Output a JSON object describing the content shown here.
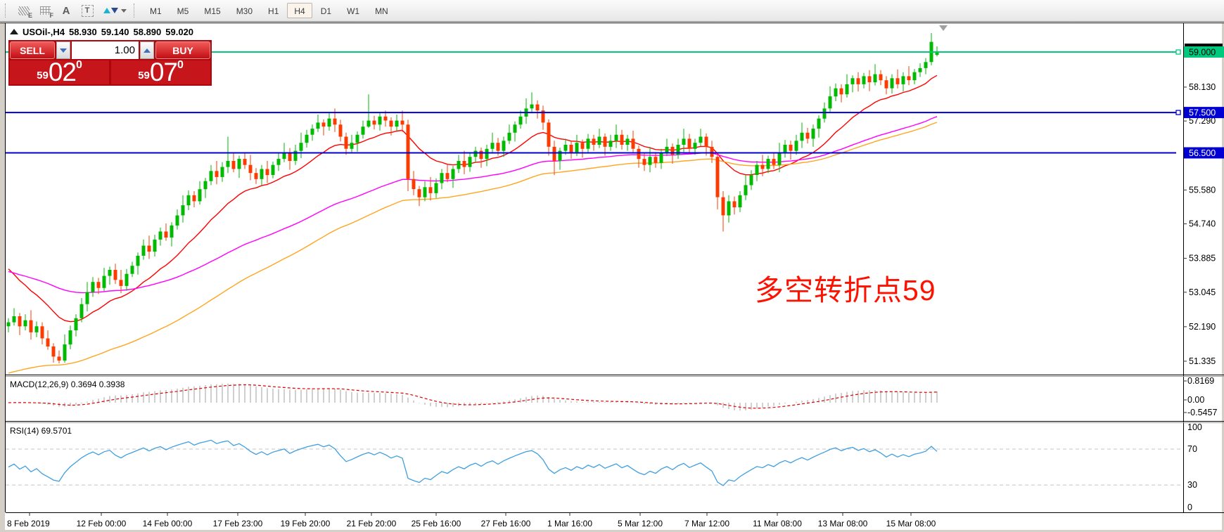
{
  "toolbar": {
    "icons": [
      {
        "name": "indicators-icon",
        "glyph": "E"
      },
      {
        "name": "grid-icon",
        "glyph": "F"
      },
      {
        "name": "text-label-icon",
        "glyph": "A"
      },
      {
        "name": "text-box-icon",
        "glyph": "T"
      },
      {
        "name": "arrow-objects-icon",
        "glyph": ""
      }
    ],
    "timeframes": [
      "M1",
      "M5",
      "M15",
      "M30",
      "H1",
      "H4",
      "D1",
      "W1",
      "MN"
    ],
    "selected_timeframe": "H4"
  },
  "quote": {
    "symbol_period": "USOil-,H4",
    "open": "58.930",
    "high": "59.140",
    "low": "58.890",
    "close": "59.020"
  },
  "trade_panel": {
    "sell_label": "SELL",
    "buy_label": "BUY",
    "volume": "1.00",
    "sell_price_small": "59",
    "sell_price_big": "02",
    "sell_price_sup": "0",
    "buy_price_small": "59",
    "buy_price_big": "07",
    "buy_price_sup": "0"
  },
  "annotation": {
    "text": "多空转折点59",
    "color": "#fd1100"
  },
  "price_axis": {
    "ticks": [
      {
        "label": "58.130",
        "value": 58.13
      },
      {
        "label": "57.290",
        "value": 57.29
      },
      {
        "label": "55.580",
        "value": 55.58
      },
      {
        "label": "54.740",
        "value": 54.74
      },
      {
        "label": "53.885",
        "value": 53.885
      },
      {
        "label": "53.045",
        "value": 53.045
      },
      {
        "label": "52.190",
        "value": 52.19
      },
      {
        "label": "51.335",
        "value": 51.335
      }
    ]
  },
  "hlines": [
    {
      "label": "59.000",
      "value": 59.0,
      "color": "#00c97e",
      "label_bg": "#00c97e",
      "label_fg": "#000000",
      "marker": true
    },
    {
      "label": "57.500",
      "value": 57.5,
      "color": "#0000d2",
      "label_bg": "#0000d2",
      "label_fg": "#ffffff",
      "marker": true
    },
    {
      "label": "56.500",
      "value": 56.5,
      "color": "#0000d2",
      "label_bg": "#0000d2",
      "label_fg": "#ffffff",
      "marker": false
    }
  ],
  "macd": {
    "label": "MACD(12,26,9) 0.3694 0.3938",
    "fast": 12,
    "slow": 26,
    "signal": 9,
    "main_value": "0.3694",
    "signal_value": "0.3938",
    "histogram_color": "#bbbbbb",
    "signal_color": "#e00000",
    "scale_labels": [
      {
        "text": "0.8169",
        "v": 0.8169
      },
      {
        "text": "0.00",
        "v": 0
      },
      {
        "text": "-0.5457",
        "v": -0.5457
      }
    ]
  },
  "rsi": {
    "label": "RSI(14) 69.5701",
    "period": 14,
    "current": "69.5701",
    "color": "#3f9fe0",
    "scale_labels": [
      {
        "text": "100",
        "v": 100
      },
      {
        "text": "70",
        "v": 70
      },
      {
        "text": "30",
        "v": 30
      },
      {
        "text": "0",
        "v": 0
      }
    ],
    "levels": [
      70,
      30
    ]
  },
  "time_axis": {
    "labels": [
      "8 Feb 2019",
      "12 Feb 00:00",
      "14 Feb 00:00",
      "17 Feb 23:00",
      "19 Feb 20:00",
      "21 Feb 20:00",
      "25 Feb 16:00",
      "27 Feb 16:00",
      "1 Mar 16:00",
      "5 Mar 12:00",
      "7 Mar 12:00",
      "11 Mar 08:00",
      "13 Mar 08:00",
      "15 Mar 08:00"
    ]
  },
  "chart_data": {
    "type": "candlestick",
    "symbol": "USOil-",
    "period": "H4",
    "up_color": "#00ba00",
    "down_color": "#fa3c00",
    "ma_lines": [
      {
        "name": "ma-fast",
        "color": "#ff0000",
        "period": 16,
        "seed": 53.8
      },
      {
        "name": "ma-medium",
        "color": "#ff00ff",
        "period": 61,
        "seed": 53.6
      },
      {
        "name": "ma-slow",
        "color": "#ffa520",
        "period": 70,
        "seed": 51.0
      }
    ],
    "candles": [
      [
        52.2,
        52.4,
        52.05,
        52.3
      ],
      [
        52.3,
        52.65,
        52.22,
        52.45
      ],
      [
        52.45,
        52.53,
        51.98,
        52.2
      ],
      [
        52.2,
        52.5,
        52.1,
        52.35
      ],
      [
        52.35,
        52.6,
        51.87,
        52.05
      ],
      [
        52.05,
        52.32,
        51.93,
        52.2
      ],
      [
        52.2,
        52.3,
        51.75,
        51.9
      ],
      [
        51.9,
        52.1,
        51.62,
        51.7
      ],
      [
        51.7,
        51.78,
        51.3,
        51.45
      ],
      [
        51.45,
        51.6,
        51.28,
        51.35
      ],
      [
        51.35,
        52.0,
        51.3,
        51.75
      ],
      [
        51.75,
        52.22,
        51.63,
        52.1
      ],
      [
        52.1,
        52.5,
        51.95,
        52.4
      ],
      [
        52.4,
        52.9,
        52.3,
        52.75
      ],
      [
        52.75,
        53.3,
        52.57,
        53.05
      ],
      [
        53.05,
        53.42,
        52.93,
        53.3
      ],
      [
        53.3,
        53.4,
        53.0,
        53.15
      ],
      [
        53.15,
        53.65,
        53.07,
        53.45
      ],
      [
        53.45,
        53.68,
        53.23,
        53.6
      ],
      [
        53.6,
        53.75,
        53.25,
        53.35
      ],
      [
        53.35,
        53.6,
        53.02,
        53.2
      ],
      [
        53.2,
        53.62,
        53.08,
        53.5
      ],
      [
        53.5,
        53.8,
        53.42,
        53.7
      ],
      [
        53.7,
        54.03,
        53.48,
        53.95
      ],
      [
        53.95,
        54.35,
        53.85,
        54.2
      ],
      [
        54.2,
        54.45,
        53.87,
        54.05
      ],
      [
        54.05,
        54.47,
        53.93,
        54.35
      ],
      [
        54.35,
        54.65,
        54.2,
        54.55
      ],
      [
        54.55,
        54.75,
        54.32,
        54.4
      ],
      [
        54.4,
        54.78,
        54.18,
        54.7
      ],
      [
        54.7,
        55.1,
        54.6,
        54.95
      ],
      [
        54.95,
        55.45,
        54.77,
        55.2
      ],
      [
        55.2,
        55.57,
        55.08,
        55.45
      ],
      [
        55.45,
        55.55,
        55.15,
        55.3
      ],
      [
        55.3,
        55.8,
        55.22,
        55.6
      ],
      [
        55.6,
        55.88,
        55.38,
        55.8
      ],
      [
        55.8,
        56.2,
        55.7,
        56.05
      ],
      [
        56.05,
        56.3,
        55.72,
        55.9
      ],
      [
        55.9,
        56.27,
        55.78,
        56.15
      ],
      [
        56.15,
        56.9,
        56.0,
        56.3
      ],
      [
        56.3,
        56.5,
        56.02,
        56.1
      ],
      [
        56.1,
        56.43,
        55.88,
        56.35
      ],
      [
        56.35,
        56.5,
        56.1,
        56.2
      ],
      [
        56.2,
        56.45,
        55.82,
        56.0
      ],
      [
        56.0,
        56.12,
        55.73,
        55.85
      ],
      [
        55.85,
        56.2,
        55.7,
        56.1
      ],
      [
        56.1,
        56.3,
        55.75,
        55.95
      ],
      [
        55.95,
        56.28,
        55.87,
        56.2
      ],
      [
        56.2,
        56.5,
        56.05,
        56.35
      ],
      [
        56.35,
        56.75,
        56.27,
        56.5
      ],
      [
        56.5,
        56.62,
        56.08,
        56.3
      ],
      [
        56.3,
        56.7,
        56.2,
        56.55
      ],
      [
        56.55,
        57.0,
        56.37,
        56.75
      ],
      [
        56.75,
        57.07,
        56.63,
        56.95
      ],
      [
        56.95,
        57.2,
        56.8,
        57.1
      ],
      [
        57.1,
        57.45,
        57.02,
        57.25
      ],
      [
        57.25,
        57.33,
        56.93,
        57.15
      ],
      [
        57.15,
        57.5,
        57.05,
        57.35
      ],
      [
        57.35,
        57.6,
        57.02,
        57.2
      ],
      [
        57.2,
        57.32,
        56.78,
        56.9
      ],
      [
        56.9,
        57.0,
        56.45,
        56.6
      ],
      [
        56.6,
        56.95,
        56.52,
        56.75
      ],
      [
        56.75,
        57.03,
        56.53,
        56.95
      ],
      [
        56.95,
        57.3,
        56.85,
        57.15
      ],
      [
        57.15,
        57.95,
        57.12,
        57.3
      ],
      [
        57.3,
        57.42,
        57.08,
        57.2
      ],
      [
        57.2,
        57.5,
        57.05,
        57.4
      ],
      [
        57.4,
        57.55,
        57.15,
        57.3
      ],
      [
        57.3,
        57.38,
        56.93,
        57.15
      ],
      [
        57.15,
        57.45,
        57.05,
        57.3
      ],
      [
        57.3,
        57.55,
        57.02,
        57.2
      ],
      [
        57.2,
        57.32,
        55.55,
        55.85
      ],
      [
        55.85,
        56.05,
        55.45,
        55.6
      ],
      [
        55.6,
        55.68,
        55.18,
        55.4
      ],
      [
        55.4,
        55.8,
        55.3,
        55.65
      ],
      [
        55.65,
        55.9,
        55.32,
        55.5
      ],
      [
        55.5,
        55.87,
        55.38,
        55.75
      ],
      [
        55.75,
        56.1,
        55.6,
        56.0
      ],
      [
        56.0,
        56.2,
        55.77,
        55.85
      ],
      [
        55.85,
        56.18,
        55.63,
        56.1
      ],
      [
        56.1,
        56.45,
        56.0,
        56.3
      ],
      [
        56.3,
        56.55,
        55.97,
        56.15
      ],
      [
        56.15,
        56.52,
        56.03,
        56.4
      ],
      [
        56.4,
        56.65,
        56.25,
        56.55
      ],
      [
        56.55,
        56.63,
        56.13,
        56.35
      ],
      [
        56.35,
        56.7,
        56.17,
        56.6
      ],
      [
        56.6,
        57.0,
        56.48,
        56.75
      ],
      [
        56.75,
        56.87,
        56.43,
        56.55
      ],
      [
        56.55,
        56.9,
        56.4,
        56.8
      ],
      [
        56.8,
        57.2,
        56.72,
        57.0
      ],
      [
        57.0,
        57.28,
        56.78,
        57.2
      ],
      [
        57.2,
        57.55,
        57.1,
        57.4
      ],
      [
        57.4,
        57.85,
        57.22,
        57.6
      ],
      [
        57.6,
        58.0,
        57.48,
        57.7
      ],
      [
        57.7,
        57.8,
        57.35,
        57.55
      ],
      [
        57.55,
        57.67,
        57.07,
        57.25
      ],
      [
        57.25,
        57.33,
        56.43,
        56.65
      ],
      [
        56.65,
        56.8,
        55.95,
        56.3
      ],
      [
        56.3,
        56.63,
        56.08,
        56.55
      ],
      [
        56.55,
        56.85,
        56.45,
        56.7
      ],
      [
        56.7,
        56.8,
        56.35,
        56.5
      ],
      [
        56.5,
        56.95,
        56.42,
        56.75
      ],
      [
        56.75,
        56.83,
        56.38,
        56.6
      ],
      [
        56.6,
        56.97,
        56.48,
        56.85
      ],
      [
        56.85,
        56.95,
        56.55,
        56.7
      ],
      [
        56.7,
        57.1,
        56.62,
        56.9
      ],
      [
        56.9,
        56.98,
        56.43,
        56.65
      ],
      [
        56.65,
        56.95,
        56.55,
        56.8
      ],
      [
        56.8,
        57.2,
        56.62,
        56.95
      ],
      [
        56.95,
        57.07,
        56.58,
        56.7
      ],
      [
        56.7,
        56.95,
        56.55,
        56.85
      ],
      [
        56.85,
        57.05,
        56.52,
        56.6
      ],
      [
        56.6,
        56.68,
        56.13,
        56.35
      ],
      [
        56.35,
        56.5,
        56.05,
        56.2
      ],
      [
        56.2,
        56.65,
        56.02,
        56.4
      ],
      [
        56.4,
        56.52,
        56.13,
        56.25
      ],
      [
        56.25,
        56.6,
        56.1,
        56.5
      ],
      [
        56.5,
        56.85,
        56.42,
        56.65
      ],
      [
        56.65,
        56.73,
        56.23,
        56.45
      ],
      [
        56.45,
        56.85,
        56.35,
        56.7
      ],
      [
        56.7,
        57.1,
        56.52,
        56.85
      ],
      [
        56.85,
        56.97,
        56.48,
        56.6
      ],
      [
        56.6,
        56.85,
        56.45,
        56.75
      ],
      [
        56.75,
        57.1,
        56.67,
        56.9
      ],
      [
        56.9,
        56.98,
        56.43,
        56.65
      ],
      [
        56.65,
        56.8,
        56.25,
        56.4
      ],
      [
        56.4,
        56.5,
        55.1,
        55.4
      ],
      [
        55.4,
        55.55,
        54.55,
        54.95
      ],
      [
        54.95,
        55.45,
        54.77,
        55.3
      ],
      [
        55.3,
        55.42,
        54.97,
        55.15
      ],
      [
        55.15,
        55.55,
        55.03,
        55.45
      ],
      [
        55.45,
        55.95,
        55.33,
        55.7
      ],
      [
        55.7,
        56.07,
        55.58,
        55.95
      ],
      [
        55.95,
        56.3,
        55.8,
        56.2
      ],
      [
        56.2,
        56.45,
        55.92,
        56.1
      ],
      [
        56.1,
        56.43,
        56.0,
        56.35
      ],
      [
        56.35,
        56.5,
        56.1,
        56.2
      ],
      [
        56.2,
        56.75,
        56.02,
        56.5
      ],
      [
        56.5,
        56.82,
        56.38,
        56.7
      ],
      [
        56.7,
        56.8,
        56.33,
        56.55
      ],
      [
        56.55,
        56.95,
        56.45,
        56.8
      ],
      [
        56.8,
        57.25,
        56.62,
        57.0
      ],
      [
        57.0,
        57.12,
        56.73,
        56.85
      ],
      [
        56.85,
        57.2,
        56.65,
        57.1
      ],
      [
        57.1,
        57.43,
        56.88,
        57.35
      ],
      [
        57.35,
        57.75,
        57.25,
        57.6
      ],
      [
        57.6,
        58.15,
        57.52,
        57.9
      ],
      [
        57.9,
        58.22,
        57.78,
        58.1
      ],
      [
        58.1,
        58.2,
        57.75,
        57.95
      ],
      [
        57.95,
        58.45,
        57.87,
        58.2
      ],
      [
        58.2,
        58.42,
        58.0,
        58.35
      ],
      [
        58.35,
        58.5,
        58.02,
        58.2
      ],
      [
        58.2,
        58.48,
        58.1,
        58.4
      ],
      [
        58.4,
        58.55,
        58.03,
        58.25
      ],
      [
        58.25,
        58.7,
        58.17,
        58.45
      ],
      [
        58.45,
        58.55,
        58.18,
        58.3
      ],
      [
        58.3,
        58.4,
        57.95,
        58.1
      ],
      [
        58.1,
        58.45,
        57.97,
        58.35
      ],
      [
        58.35,
        58.57,
        58.1,
        58.2
      ],
      [
        58.2,
        58.5,
        58.02,
        58.4
      ],
      [
        58.4,
        58.65,
        58.18,
        58.3
      ],
      [
        58.3,
        58.58,
        58.2,
        58.5
      ],
      [
        58.5,
        58.72,
        58.38,
        58.6
      ],
      [
        58.6,
        58.85,
        58.45,
        58.75
      ],
      [
        58.75,
        59.47,
        58.67,
        59.25
      ],
      [
        58.93,
        59.14,
        58.89,
        59.02
      ]
    ]
  }
}
